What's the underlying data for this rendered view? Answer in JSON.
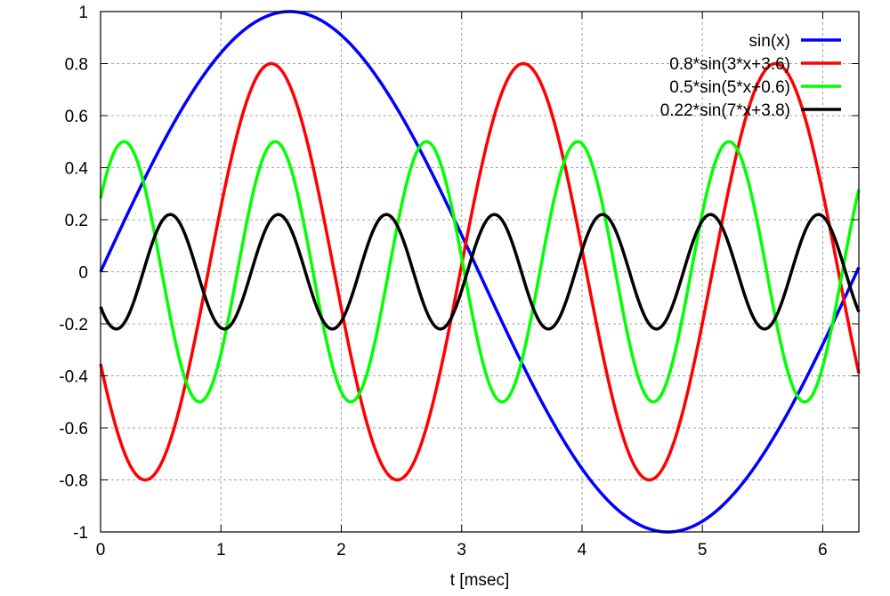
{
  "chart_data": {
    "type": "line",
    "title": "",
    "xlabel": "t [msec]",
    "ylabel": "",
    "xlim": [
      0,
      6.3
    ],
    "ylim": [
      -1,
      1
    ],
    "grid": true,
    "legend_position": "top-right",
    "x_ticks": [
      0,
      1,
      2,
      3,
      4,
      5,
      6
    ],
    "x_tick_labels": [
      "0",
      "1",
      "2",
      "3",
      "4",
      "5",
      "6"
    ],
    "y_ticks": [
      -1,
      -0.8,
      -0.6,
      -0.4,
      -0.2,
      0,
      0.2,
      0.4,
      0.6,
      0.8,
      1
    ],
    "y_tick_labels": [
      "-1",
      "-0.8",
      "-0.6",
      "-0.4",
      "-0.2",
      "0",
      "0.2",
      "0.4",
      "0.6",
      "0.8",
      "1"
    ],
    "series": [
      {
        "name": "sin(x)",
        "color": "#0000ff",
        "amplitude": 1.0,
        "frequency": 1,
        "phase": 0.0
      },
      {
        "name": "0.8*sin(3*x+3.6)",
        "color": "#ff0000",
        "amplitude": 0.8,
        "frequency": 3,
        "phase": 3.6
      },
      {
        "name": "0.5*sin(5*x+0.6)",
        "color": "#00ff00",
        "amplitude": 0.5,
        "frequency": 5,
        "phase": 0.6
      },
      {
        "name": "0.22*sin(7*x+3.8)",
        "color": "#000000",
        "amplitude": 0.22,
        "frequency": 7,
        "phase": 3.8
      }
    ]
  }
}
